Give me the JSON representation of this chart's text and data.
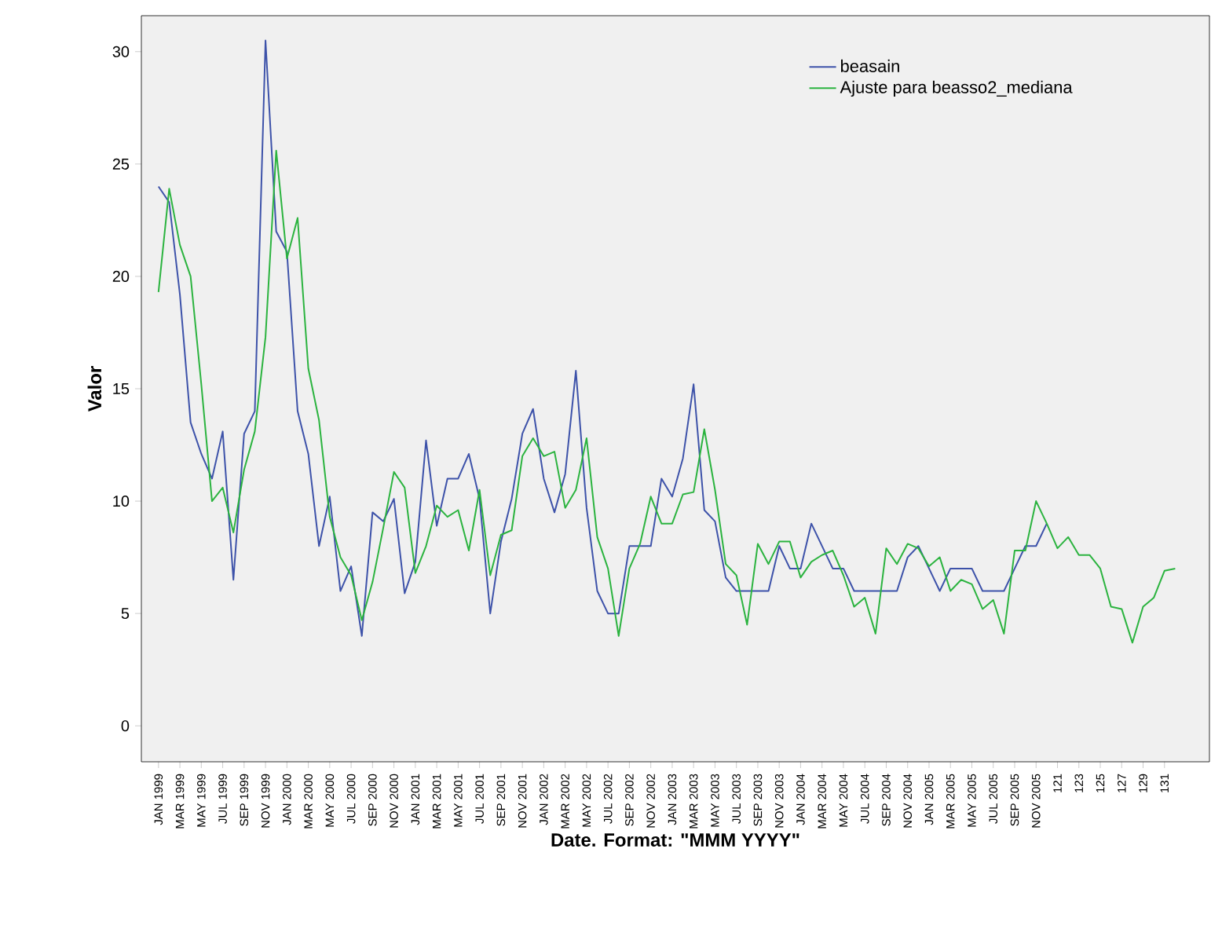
{
  "chart_data": {
    "type": "line",
    "xlabel": "Date.  Format:  \"MMM YYYY\"",
    "ylabel": "Valor",
    "categories": [
      "JAN 1999",
      null,
      "MAR 1999",
      null,
      "MAY 1999",
      null,
      "JUL 1999",
      null,
      "SEP 1999",
      null,
      "NOV 1999",
      null,
      "JAN 2000",
      null,
      "MAR 2000",
      null,
      "MAY 2000",
      null,
      "JUL 2000",
      null,
      "SEP 2000",
      null,
      "NOV 2000",
      null,
      "JAN 2001",
      null,
      "MAR 2001",
      null,
      "MAY 2001",
      null,
      "JUL 2001",
      null,
      "SEP 2001",
      null,
      "NOV 2001",
      null,
      "JAN 2002",
      null,
      "MAR 2002",
      null,
      "MAY 2002",
      null,
      "JUL 2002",
      null,
      "SEP 2002",
      null,
      "NOV 2002",
      null,
      "JAN 2003",
      null,
      "MAR 2003",
      null,
      "MAY 2003",
      null,
      "JUL 2003",
      null,
      "SEP 2003",
      null,
      "NOV 2003",
      null,
      "JAN 2004",
      null,
      "MAR 2004",
      null,
      "MAY 2004",
      null,
      "JUL 2004",
      null,
      "SEP 2004",
      null,
      "NOV 2004",
      null,
      "JAN 2005",
      null,
      "MAR 2005",
      null,
      "MAY 2005",
      null,
      "JUL 2005",
      null,
      "SEP 2005",
      null,
      "NOV 2005",
      null,
      "121",
      null,
      "123",
      null,
      "125",
      null,
      "127",
      null,
      "129",
      null,
      "131",
      null
    ],
    "series": [
      {
        "name": "beasain",
        "color": "#3d52a9",
        "values": [
          24,
          23.3,
          19.2,
          13.5,
          12.1,
          11.0,
          13.1,
          6.5,
          13.0,
          14.0,
          30.5,
          22.0,
          21.1,
          14.0,
          12.1,
          8.0,
          10.2,
          6.0,
          7.1,
          4.0,
          9.5,
          9.1,
          10.1,
          5.9,
          7.3,
          12.7,
          8.9,
          11.0,
          11.0,
          12.1,
          10.1,
          5.0,
          8.2,
          10.1,
          13.0,
          14.1,
          11.0,
          9.5,
          11.2,
          15.8,
          9.7,
          6,
          5,
          5,
          8,
          8,
          8,
          11,
          10.2,
          11.9,
          15.2,
          9.6,
          9.1,
          6.6,
          6,
          6,
          6,
          6,
          8,
          7,
          7,
          9,
          8,
          7,
          7,
          6,
          6,
          6,
          6,
          6,
          7.5,
          8,
          7,
          6,
          7,
          7,
          7,
          6,
          6,
          6,
          7,
          8,
          8,
          9,
          null,
          null,
          null,
          null,
          null,
          null,
          null,
          null,
          null,
          null,
          null,
          null
        ]
      },
      {
        "name": "Ajuste para beasso2_mediana",
        "color": "#2bb33f",
        "values": [
          19.3,
          23.9,
          21.4,
          20.0,
          15.2,
          10.0,
          10.6,
          8.6,
          11.4,
          13.1,
          17.3,
          25.6,
          20.8,
          22.6,
          15.9,
          13.6,
          9.3,
          7.5,
          6.7,
          4.7,
          6.4,
          8.8,
          11.3,
          10.6,
          6.8,
          8.0,
          9.8,
          9.3,
          9.6,
          7.8,
          10.5,
          6.7,
          8.5,
          8.7,
          12.0,
          12.8,
          12.0,
          12.2,
          9.7,
          10.5,
          12.8,
          8.4,
          7.0,
          4.0,
          7.0,
          8.1,
          10.2,
          9.0,
          9.0,
          10.3,
          10.4,
          13.2,
          10.5,
          7.2,
          6.7,
          4.5,
          8.1,
          7.2,
          8.2,
          8.2,
          6.6,
          7.3,
          7.6,
          7.8,
          6.7,
          5.3,
          5.7,
          4.1,
          7.9,
          7.2,
          8.1,
          7.9,
          7.1,
          7.5,
          6.0,
          6.5,
          6.3,
          5.2,
          5.6,
          4.1,
          7.8,
          7.8,
          10.0,
          9.0,
          7.9,
          8.4,
          7.6,
          7.6,
          7.0,
          5.3,
          5.2,
          3.7,
          5.3,
          5.7,
          6.9,
          7.0
        ]
      }
    ],
    "ylim": [
      -1.6,
      31.6
    ],
    "yticks": [
      0,
      5,
      10,
      15,
      20,
      25,
      30
    ],
    "grid": false,
    "legend": "top right",
    "marker": "none",
    "line_style": "solid"
  }
}
